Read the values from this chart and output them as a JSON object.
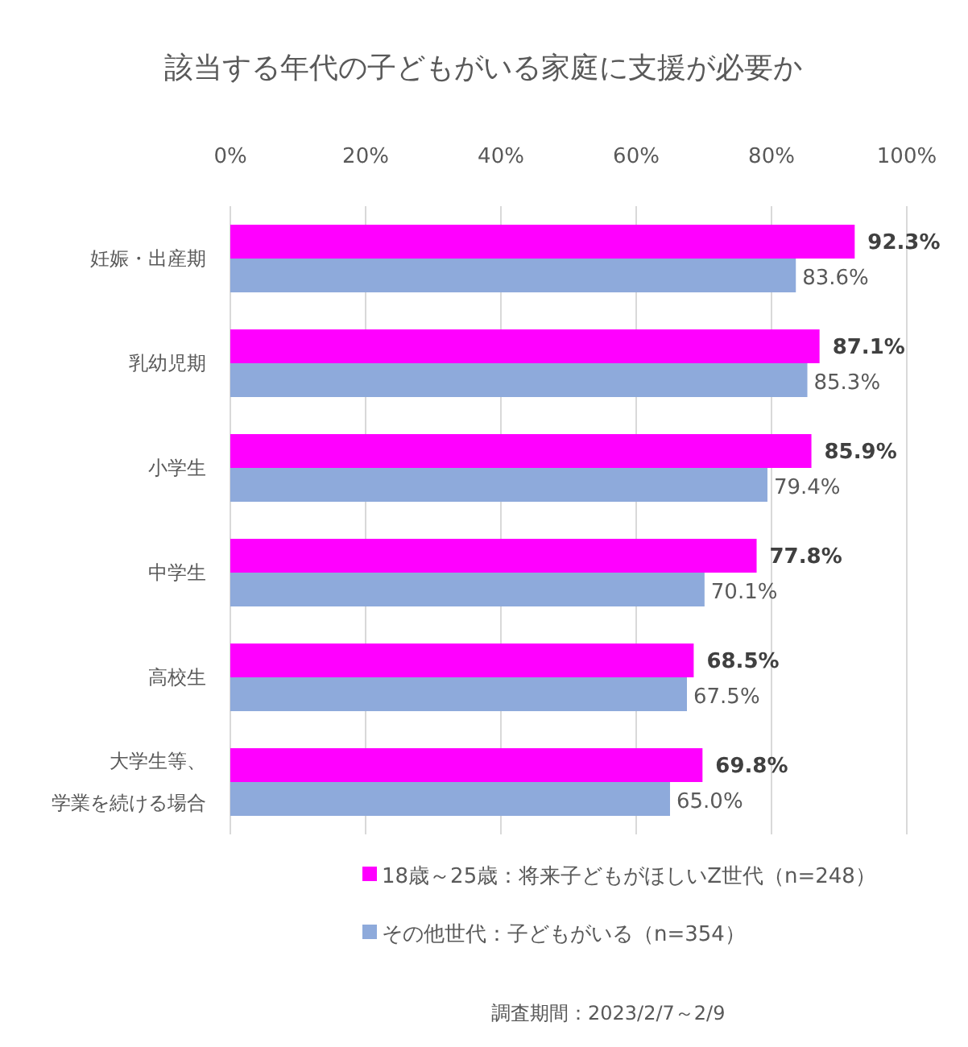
{
  "chart_data": {
    "type": "bar",
    "orientation": "horizontal",
    "title": "該当する年代の子どもがいる家庭に支援が必要か",
    "categories": [
      "妊娠・出産期",
      "乳幼児期",
      "小学生",
      "中学生",
      "高校生",
      "大学生等、学業を続ける場合"
    ],
    "series": [
      {
        "name": "18歳～25歳：将来子どもがほしいZ世代（n=248）",
        "color": "#ff00ff",
        "values": [
          92.3,
          87.1,
          85.9,
          77.8,
          68.5,
          69.8
        ],
        "value_labels": [
          "92.3%",
          "87.1%",
          "85.9%",
          "77.8%",
          "68.5%",
          "69.8%"
        ]
      },
      {
        "name": "その他世代：子どもがいる（n=354）",
        "color": "#8eaadb",
        "values": [
          83.6,
          85.3,
          79.4,
          70.1,
          67.5,
          65.0
        ],
        "value_labels": [
          "83.6%",
          "85.3%",
          "79.4%",
          "70.1%",
          "67.5%",
          "65.0%"
        ]
      }
    ],
    "xlim": [
      0,
      100
    ],
    "xticks": [
      {
        "value": 0,
        "label": "0%"
      },
      {
        "value": 20,
        "label": "20%"
      },
      {
        "value": 40,
        "label": "40%"
      },
      {
        "value": 60,
        "label": "60%"
      },
      {
        "value": 80,
        "label": "80%"
      },
      {
        "value": 100,
        "label": "100%"
      }
    ],
    "grid": "x",
    "legend": "bottom",
    "annotations": [
      "調査期間：2023/2/7～2/9"
    ]
  }
}
